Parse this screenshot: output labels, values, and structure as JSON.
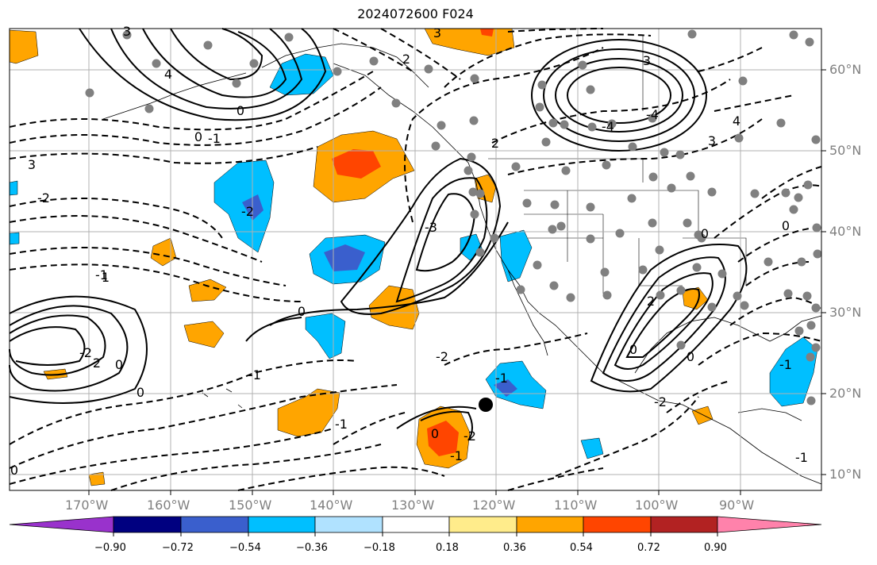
{
  "title": "2024072600 F024",
  "lat_labels": [
    "60°N",
    "50°N",
    "40°N",
    "30°N",
    "20°N",
    "10°N"
  ],
  "lon_labels": [
    "170°W",
    "160°W",
    "150°W",
    "140°W",
    "130°W",
    "120°W",
    "110°W",
    "100°W",
    "90°W"
  ],
  "colorbar": {
    "tick_labels": [
      "−0.90",
      "−0.72",
      "−0.54",
      "−0.36",
      "−0.18",
      "0.18",
      "0.36",
      "0.54",
      "0.72",
      "0.90"
    ],
    "under_color": "#9932cc",
    "colors": [
      "#000080",
      "#3a5fcd",
      "#00bfff",
      "#b0e2ff",
      "#ffffff",
      "#ffec8b",
      "#ffa500",
      "#ff4500",
      "#b22222"
    ],
    "over_color": "#ff82ab"
  },
  "contour_labels": [
    "3",
    "3",
    "2",
    "4",
    "0",
    "-1",
    "0",
    "2",
    "3",
    "-2",
    "-1",
    "1",
    "-3",
    "-2",
    "0",
    "0",
    "-2",
    "2",
    "-1",
    "0",
    "-1",
    "-1",
    "-2",
    "-1",
    "0",
    "-2",
    "-2",
    "0",
    "0",
    "2",
    "0",
    "3",
    "-4",
    "-4",
    "4",
    "-1",
    "0",
    "0",
    "-1",
    "3"
  ],
  "legend_shading": "shaded anomaly fields, solid/dashed contours",
  "colors": {
    "blue": "#00bfff",
    "dark_blue": "#3a5fcd",
    "orange": "#ffa500",
    "red": "#ff4500",
    "station": "#808080",
    "grid": "#b0b0b0"
  }
}
